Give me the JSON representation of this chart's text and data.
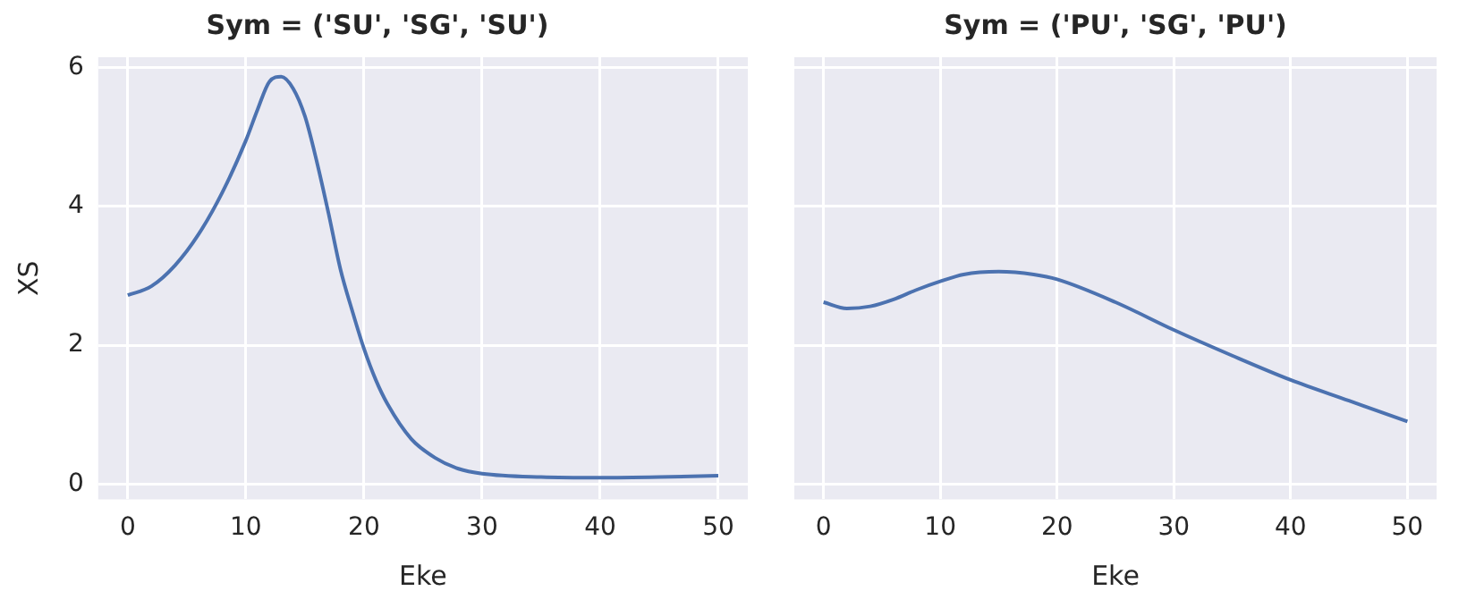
{
  "chart_data": [
    {
      "type": "line",
      "title": "Sym = ('SU', 'SG', 'SU')",
      "xlabel": "Eke",
      "ylabel": "XS",
      "x": [
        0,
        2,
        4,
        6,
        8,
        10,
        11,
        12,
        13,
        14,
        15,
        16,
        17,
        18,
        19,
        20,
        21,
        22,
        24,
        26,
        28,
        30,
        35,
        40,
        45,
        50
      ],
      "series": [
        {
          "color": "#4c72b0",
          "values": [
            2.72,
            2.85,
            3.15,
            3.6,
            4.2,
            4.95,
            5.4,
            5.8,
            5.87,
            5.7,
            5.3,
            4.65,
            3.9,
            3.1,
            2.5,
            1.95,
            1.5,
            1.15,
            0.65,
            0.38,
            0.22,
            0.15,
            0.1,
            0.09,
            0.1,
            0.12
          ]
        }
      ],
      "xlim": [
        -2.5,
        52.5
      ],
      "xticks": [
        0,
        10,
        20,
        30,
        40,
        50
      ],
      "ylim": [
        -0.22,
        6.15
      ],
      "yticks": [
        0,
        2,
        4,
        6
      ],
      "grid": true,
      "legend": false
    },
    {
      "type": "line",
      "title": "Sym = ('PU', 'SG', 'PU')",
      "xlabel": "Eke",
      "x": [
        0,
        2,
        4,
        6,
        8,
        10,
        12,
        15,
        18,
        20,
        25,
        30,
        35,
        40,
        45,
        50
      ],
      "series": [
        {
          "color": "#4c72b0",
          "values": [
            2.62,
            2.53,
            2.56,
            2.66,
            2.8,
            2.92,
            3.02,
            3.06,
            3.02,
            2.95,
            2.62,
            2.22,
            1.85,
            1.5,
            1.2,
            0.9
          ]
        }
      ],
      "xlim": [
        -2.5,
        52.5
      ],
      "xticks": [
        0,
        10,
        20,
        30,
        40,
        50
      ],
      "ylim": [
        -0.22,
        6.15
      ],
      "yticks": [
        0,
        2,
        4,
        6
      ],
      "grid": true,
      "legend": false,
      "tick_labels": "x"
    }
  ]
}
